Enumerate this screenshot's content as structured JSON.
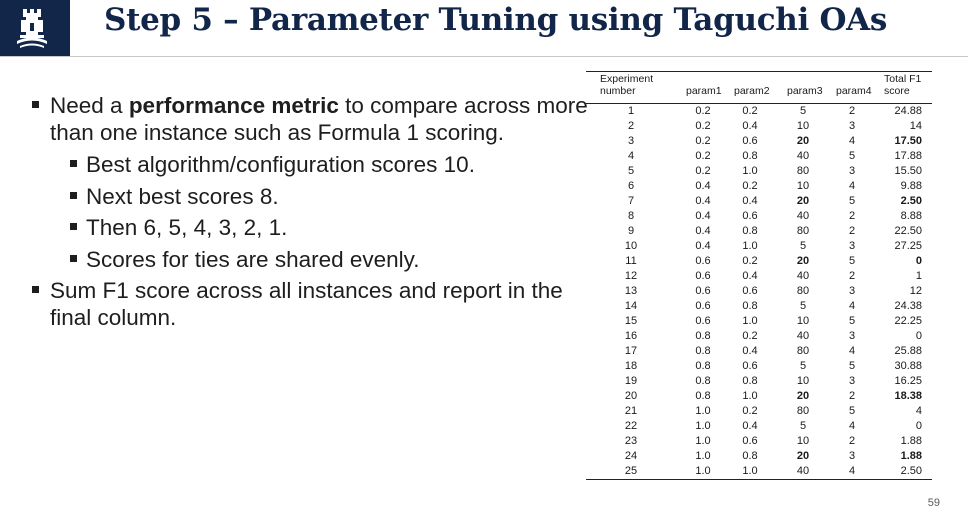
{
  "slide": {
    "title": "Step 5 – Parameter Tuning using Taguchi OAs",
    "page_number": "59",
    "brand_color": "#12264a"
  },
  "bullets": {
    "b1_pre": "Need a ",
    "b1_bold": "performance metric",
    "b1_post": " to compare across more than one instance such as Formula 1 scoring.",
    "sub1": "Best algorithm/configuration scores 10.",
    "sub2": "Next best scores 8.",
    "sub3": "Then 6, 5, 4, 3, 2, 1.",
    "sub4": "Scores for ties are shared evenly.",
    "b2": "Sum F1 score across all instances and report in the final column."
  },
  "table": {
    "headers": {
      "experiment_line1": "Experiment",
      "experiment_line2": "number",
      "param1": "param1",
      "param2": "param2",
      "param3": "param3",
      "param4": "param4",
      "total_line1": "Total F1",
      "total_line2": "score"
    },
    "rows": [
      {
        "exp": "1",
        "p1": "0.2",
        "p2": "0.2",
        "p3": "5",
        "p4": "2",
        "total": "24.88",
        "bold": false
      },
      {
        "exp": "2",
        "p1": "0.2",
        "p2": "0.4",
        "p3": "10",
        "p4": "3",
        "total": "14",
        "bold": false
      },
      {
        "exp": "3",
        "p1": "0.2",
        "p2": "0.6",
        "p3": "20",
        "p4": "4",
        "total": "17.50",
        "bold": true
      },
      {
        "exp": "4",
        "p1": "0.2",
        "p2": "0.8",
        "p3": "40",
        "p4": "5",
        "total": "17.88",
        "bold": false
      },
      {
        "exp": "5",
        "p1": "0.2",
        "p2": "1.0",
        "p3": "80",
        "p4": "3",
        "total": "15.50",
        "bold": false
      },
      {
        "exp": "6",
        "p1": "0.4",
        "p2": "0.2",
        "p3": "10",
        "p4": "4",
        "total": "9.88",
        "bold": false
      },
      {
        "exp": "7",
        "p1": "0.4",
        "p2": "0.4",
        "p3": "20",
        "p4": "5",
        "total": "2.50",
        "bold": true
      },
      {
        "exp": "8",
        "p1": "0.4",
        "p2": "0.6",
        "p3": "40",
        "p4": "2",
        "total": "8.88",
        "bold": false
      },
      {
        "exp": "9",
        "p1": "0.4",
        "p2": "0.8",
        "p3": "80",
        "p4": "2",
        "total": "22.50",
        "bold": false
      },
      {
        "exp": "10",
        "p1": "0.4",
        "p2": "1.0",
        "p3": "5",
        "p4": "3",
        "total": "27.25",
        "bold": false
      },
      {
        "exp": "11",
        "p1": "0.6",
        "p2": "0.2",
        "p3": "20",
        "p4": "5",
        "total": "0",
        "bold": true
      },
      {
        "exp": "12",
        "p1": "0.6",
        "p2": "0.4",
        "p3": "40",
        "p4": "2",
        "total": "1",
        "bold": false
      },
      {
        "exp": "13",
        "p1": "0.6",
        "p2": "0.6",
        "p3": "80",
        "p4": "3",
        "total": "12",
        "bold": false
      },
      {
        "exp": "14",
        "p1": "0.6",
        "p2": "0.8",
        "p3": "5",
        "p4": "4",
        "total": "24.38",
        "bold": false
      },
      {
        "exp": "15",
        "p1": "0.6",
        "p2": "1.0",
        "p3": "10",
        "p4": "5",
        "total": "22.25",
        "bold": false
      },
      {
        "exp": "16",
        "p1": "0.8",
        "p2": "0.2",
        "p3": "40",
        "p4": "3",
        "total": "0",
        "bold": false
      },
      {
        "exp": "17",
        "p1": "0.8",
        "p2": "0.4",
        "p3": "80",
        "p4": "4",
        "total": "25.88",
        "bold": false
      },
      {
        "exp": "18",
        "p1": "0.8",
        "p2": "0.6",
        "p3": "5",
        "p4": "5",
        "total": "30.88",
        "bold": false
      },
      {
        "exp": "19",
        "p1": "0.8",
        "p2": "0.8",
        "p3": "10",
        "p4": "3",
        "total": "16.25",
        "bold": false
      },
      {
        "exp": "20",
        "p1": "0.8",
        "p2": "1.0",
        "p3": "20",
        "p4": "2",
        "total": "18.38",
        "bold": true
      },
      {
        "exp": "21",
        "p1": "1.0",
        "p2": "0.2",
        "p3": "80",
        "p4": "5",
        "total": "4",
        "bold": false
      },
      {
        "exp": "22",
        "p1": "1.0",
        "p2": "0.4",
        "p3": "5",
        "p4": "4",
        "total": "0",
        "bold": false
      },
      {
        "exp": "23",
        "p1": "1.0",
        "p2": "0.6",
        "p3": "10",
        "p4": "2",
        "total": "1.88",
        "bold": false
      },
      {
        "exp": "24",
        "p1": "1.0",
        "p2": "0.8",
        "p3": "20",
        "p4": "3",
        "total": "1.88",
        "bold": true
      },
      {
        "exp": "25",
        "p1": "1.0",
        "p2": "1.0",
        "p3": "40",
        "p4": "4",
        "total": "2.50",
        "bold": false
      }
    ]
  }
}
